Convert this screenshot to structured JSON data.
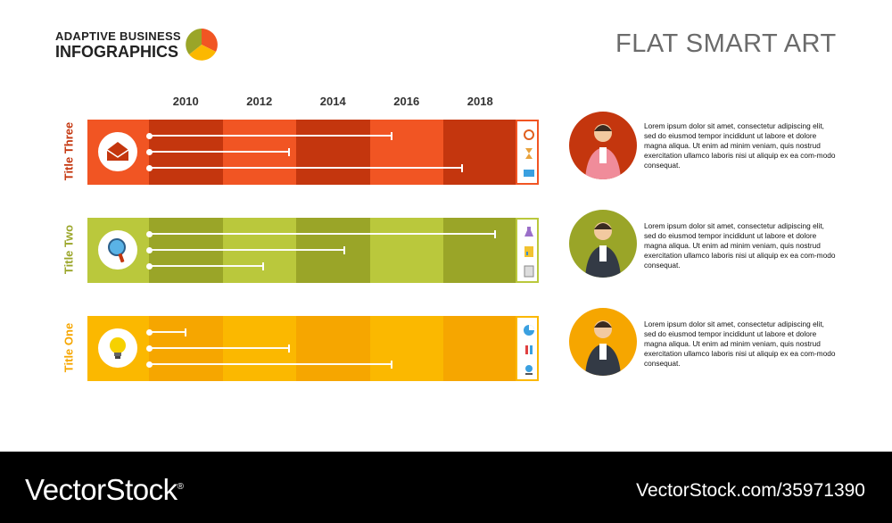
{
  "header": {
    "logo_line1": "ADAPTIVE BUSINESS",
    "logo_line2": "INFOGRAPHICS",
    "title": "FLAT SMART ART"
  },
  "chart_data": {
    "type": "bar",
    "orientation": "horizontal",
    "x_ticks": [
      "2010",
      "2012",
      "2014",
      "2016",
      "2018"
    ],
    "xlim": [
      2010,
      2020
    ],
    "rows": [
      {
        "label": "Title Three",
        "icon": "envelope-icon",
        "color_dark": "#c4360e",
        "color_light": "#f15523",
        "values": [
          2016.6,
          2013.8,
          2018.5
        ],
        "side_icons": [
          "alarm-clock-icon",
          "hourglass-icon",
          "monitor-icon"
        ]
      },
      {
        "label": "Two",
        "full_label": "Title Two",
        "icon": "magnifier-icon",
        "color_dark": "#9aa528",
        "color_light": "#bac83c",
        "values": [
          2019.4,
          2015.3,
          2013.1
        ],
        "side_icons": [
          "flask-icon",
          "document-chart-icon",
          "checklist-icon"
        ]
      },
      {
        "label": "Title One",
        "icon": "lightbulb-icon",
        "color_dark": "#f6a600",
        "color_light": "#fbb800",
        "values": [
          2011.0,
          2013.8,
          2016.6
        ],
        "side_icons": [
          "pie-icon",
          "test-tubes-icon",
          "microscope-icon"
        ]
      }
    ]
  },
  "people": [
    {
      "icon": "woman-avatar-icon",
      "bg": "#c4360e",
      "text": "Lorem ipsum dolor sit amet, consectetur adipiscing elit, sed do eiusmod tempor incididunt ut labore et dolore magna aliqua. Ut enim ad minim veniam, quis nostrud exercitation ullamco laboris nisi ut aliquip ex ea com-modo consequat."
    },
    {
      "icon": "man-avatar-icon",
      "bg": "#9aa528",
      "text": "Lorem ipsum dolor sit amet, consectetur adipiscing elit, sed do eiusmod tempor incididunt ut labore et dolore magna aliqua. Ut enim ad minim veniam, quis nostrud exercitation ullamco laboris nisi ut aliquip ex ea com-modo consequat."
    },
    {
      "icon": "woman-glasses-avatar-icon",
      "bg": "#f6a600",
      "text": "Lorem ipsum dolor sit amet, consectetur adipiscing elit, sed do eiusmod tempor incididunt ut labore et dolore magna aliqua. Ut enim ad minim veniam, quis nostrud exercitation ullamco laboris nisi ut aliquip ex ea com-modo consequat."
    }
  ],
  "footer": {
    "brand": "VectorStock",
    "registered": "®",
    "id_text": "VectorStock.com/35971390"
  }
}
